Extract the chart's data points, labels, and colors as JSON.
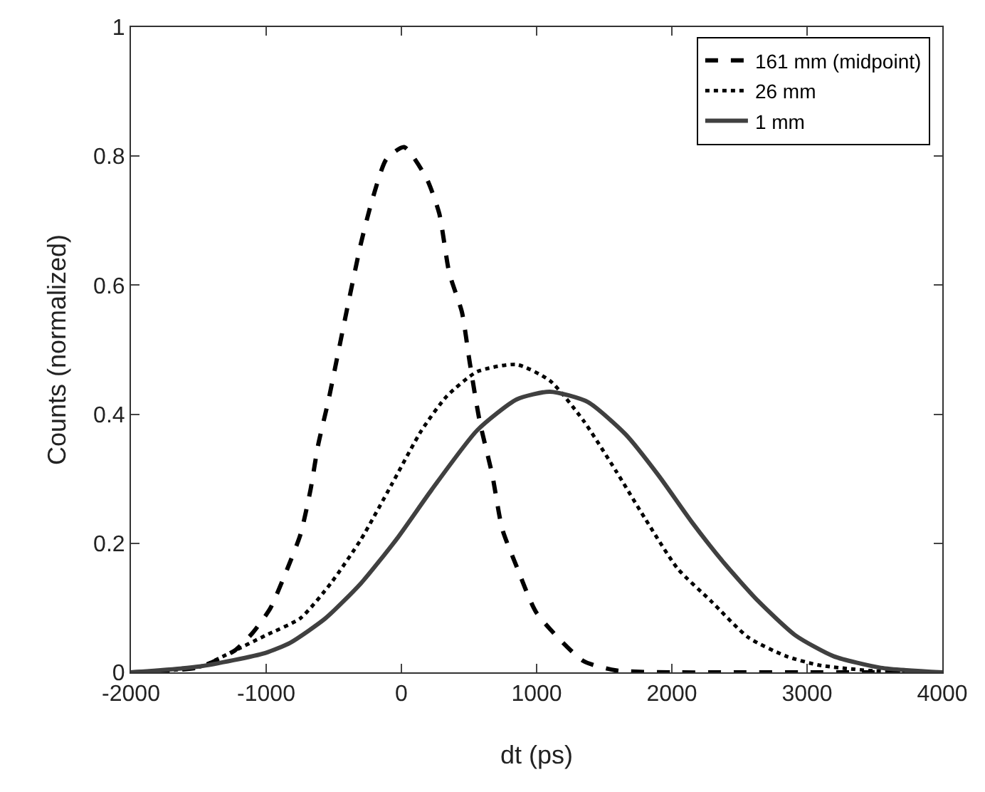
{
  "chart_data": {
    "type": "line",
    "xlabel": "dt (ps)",
    "ylabel": "Counts (normalized)",
    "xlim": [
      -2000,
      4000
    ],
    "xticks": [
      -2000,
      -1000,
      0,
      1000,
      2000,
      3000,
      4000
    ],
    "ylim": [
      0,
      1
    ],
    "yticks": [
      0,
      0.2,
      0.4,
      0.6,
      0.8,
      1
    ],
    "grid": false,
    "legend": "top right",
    "marker": "none",
    "series": [
      {
        "name": "161 mm (midpoint)",
        "color": "#000000",
        "line_style": "dashed",
        "x": [
          -2000,
          -1493,
          -1231,
          -1101,
          -970,
          -858,
          -746,
          -672,
          -616,
          -541,
          -466,
          -392,
          -299,
          -224,
          -112,
          20,
          187,
          280,
          354,
          448,
          504,
          578,
          672,
          746,
          858,
          1000,
          1343,
          1587,
          2000,
          2500,
          3000,
          3500,
          4000
        ],
        "values": [
          0,
          0.008,
          0.034,
          0.061,
          0.099,
          0.153,
          0.214,
          0.283,
          0.352,
          0.42,
          0.497,
          0.573,
          0.665,
          0.726,
          0.795,
          0.814,
          0.765,
          0.711,
          0.619,
          0.558,
          0.482,
          0.39,
          0.306,
          0.222,
          0.161,
          0.092,
          0.018,
          0.003,
          0,
          0,
          0,
          0,
          0
        ]
      },
      {
        "name": "26 mm",
        "color": "#000000",
        "line_style": "dotted",
        "x": [
          -2000,
          -1500,
          -1269,
          -1007,
          -746,
          -522,
          -299,
          -75,
          149,
          336,
          560,
          853,
          1098,
          1343,
          1587,
          1797,
          2042,
          2287,
          2566,
          2846,
          3091,
          3510,
          4000
        ],
        "values": [
          0,
          0.008,
          0.03,
          0.057,
          0.084,
          0.138,
          0.206,
          0.29,
          0.375,
          0.428,
          0.466,
          0.477,
          0.452,
          0.391,
          0.312,
          0.24,
          0.161,
          0.111,
          0.054,
          0.025,
          0.011,
          0.002,
          0
        ]
      },
      {
        "name": "1 mm",
        "color": "#404040",
        "line_style": "solid",
        "x": [
          -2000,
          -1493,
          -1007,
          -821,
          -560,
          -299,
          -37,
          224,
          560,
          853,
          1098,
          1378,
          1657,
          1902,
          2147,
          2392,
          2636,
          2916,
          3196,
          3545,
          4000
        ],
        "values": [
          0,
          0.009,
          0.03,
          0.046,
          0.084,
          0.138,
          0.206,
          0.283,
          0.375,
          0.423,
          0.435,
          0.419,
          0.369,
          0.305,
          0.233,
          0.168,
          0.111,
          0.057,
          0.025,
          0.007,
          0
        ]
      }
    ]
  }
}
